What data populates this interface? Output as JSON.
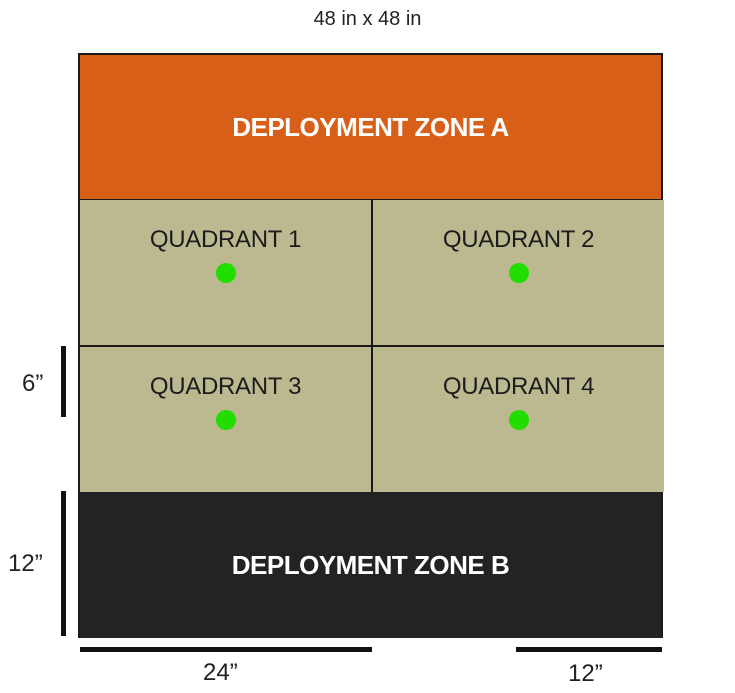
{
  "title": "48 in x 48 in",
  "zones": {
    "a": {
      "label": "DEPLOYMENT ZONE A",
      "color": "#d75f18"
    },
    "b": {
      "label": "DEPLOYMENT ZONE B",
      "color": "#232323"
    }
  },
  "quadrants": [
    {
      "label": "QUADRANT 1"
    },
    {
      "label": "QUADRANT 2"
    },
    {
      "label": "QUADRANT 3"
    },
    {
      "label": "QUADRANT 4"
    }
  ],
  "quadrant_color": "#bcb990",
  "objective_color": "#22dd00",
  "dimensions": {
    "six": "6”",
    "twelve_left": "12”",
    "twenty_four": "24”",
    "twelve_bottom": "12”"
  }
}
